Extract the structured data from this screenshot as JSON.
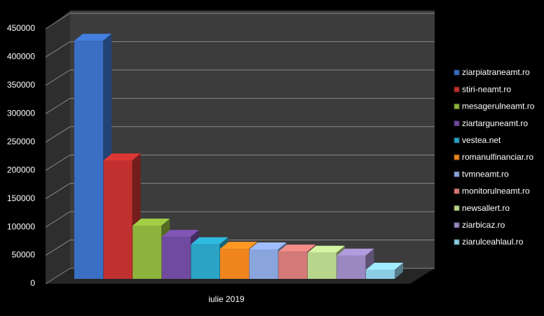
{
  "chart_data": {
    "type": "bar",
    "categories": [
      "iulie 2019"
    ],
    "series": [
      {
        "name": "ziarpiatraneamt.ro",
        "color": "#3a6fc4",
        "values": [
          420000
        ]
      },
      {
        "name": "stiri-neamt.ro",
        "color": "#c0302e",
        "values": [
          209000
        ]
      },
      {
        "name": "mesagerulneamt.ro",
        "color": "#8db33c",
        "values": [
          94000
        ]
      },
      {
        "name": "ziartarguneamt.ro",
        "color": "#6f4a9e",
        "values": [
          74000
        ]
      },
      {
        "name": "vestea.net",
        "color": "#2aa3c4",
        "values": [
          61000
        ]
      },
      {
        "name": "romanulfinanciar.ro",
        "color": "#f0851e",
        "values": [
          53000
        ]
      },
      {
        "name": "tvmneamt.ro",
        "color": "#8aa5dc",
        "values": [
          52000
        ]
      },
      {
        "name": "monitorulneamt.ro",
        "color": "#d47a78",
        "values": [
          48000
        ]
      },
      {
        "name": "newsallert.ro",
        "color": "#b8d58c",
        "values": [
          46000
        ]
      },
      {
        "name": "ziarbicaz.ro",
        "color": "#9b88c0",
        "values": [
          41000
        ]
      },
      {
        "name": "ziarulceahlaul.ro",
        "color": "#8ccde3",
        "values": [
          16000
        ]
      }
    ],
    "ylim": [
      0,
      450000
    ],
    "yticks": [
      0,
      50000,
      100000,
      150000,
      200000,
      250000,
      300000,
      350000,
      400000,
      450000
    ],
    "grid": true,
    "legend": "right"
  }
}
